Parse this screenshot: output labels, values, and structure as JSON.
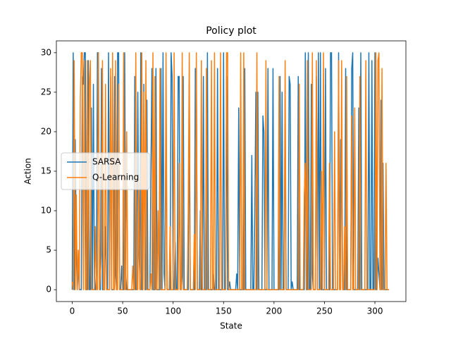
{
  "chart_data": {
    "type": "line",
    "title": "Policy plot",
    "xlabel": "State",
    "ylabel": "Action",
    "xlim": [
      -15.7,
      330.7
    ],
    "ylim": [
      -1.5,
      31.5
    ],
    "xticks": [
      0,
      50,
      100,
      150,
      200,
      250,
      300
    ],
    "yticks": [
      0,
      5,
      10,
      15,
      20,
      25,
      30
    ],
    "legend": "center left",
    "x": [
      0,
      1,
      2,
      3,
      4,
      5,
      6,
      7,
      8,
      9,
      10,
      11,
      12,
      13,
      14,
      15,
      16,
      17,
      18,
      19,
      20,
      21,
      22,
      23,
      24,
      25,
      26,
      27,
      28,
      29,
      30,
      31,
      32,
      33,
      34,
      35,
      36,
      37,
      38,
      39,
      40,
      41,
      42,
      43,
      44,
      45,
      46,
      47,
      48,
      49,
      50,
      51,
      52,
      53,
      54,
      55,
      56,
      57,
      58,
      59,
      60,
      61,
      62,
      63,
      64,
      65,
      66,
      67,
      68,
      69,
      70,
      71,
      72,
      73,
      74,
      75,
      76,
      77,
      78,
      79,
      80,
      81,
      82,
      83,
      84,
      85,
      86,
      87,
      88,
      89,
      90,
      91,
      92,
      93,
      94,
      95,
      96,
      97,
      98,
      99,
      100,
      101,
      102,
      103,
      104,
      105,
      106,
      107,
      108,
      109,
      110,
      111,
      112,
      113,
      114,
      115,
      116,
      117,
      118,
      119,
      120,
      121,
      122,
      123,
      124,
      125,
      126,
      127,
      128,
      129,
      130,
      131,
      132,
      133,
      134,
      135,
      136,
      137,
      138,
      139,
      140,
      141,
      142,
      143,
      144,
      145,
      146,
      147,
      148,
      149,
      150,
      151,
      152,
      153,
      154,
      155,
      156,
      157,
      158,
      159,
      160,
      161,
      162,
      163,
      164,
      165,
      166,
      167,
      168,
      169,
      170,
      171,
      172,
      173,
      174,
      175,
      176,
      177,
      178,
      179,
      180,
      181,
      182,
      183,
      184,
      185,
      186,
      187,
      188,
      189,
      190,
      191,
      192,
      193,
      194,
      195,
      196,
      197,
      198,
      199,
      200,
      201,
      202,
      203,
      204,
      205,
      206,
      207,
      208,
      209,
      210,
      211,
      212,
      213,
      214,
      215,
      216,
      217,
      218,
      219,
      220,
      221,
      222,
      223,
      224,
      225,
      226,
      227,
      228,
      229,
      230,
      231,
      232,
      233,
      234,
      235,
      236,
      237,
      238,
      239,
      240,
      241,
      242,
      243,
      244,
      245,
      246,
      247,
      248,
      249,
      250,
      251,
      252,
      253,
      254,
      255,
      256,
      257,
      258,
      259,
      260,
      261,
      262,
      263,
      264,
      265,
      266,
      267,
      268,
      269,
      270,
      271,
      272,
      273,
      274,
      275,
      276,
      277,
      278,
      279,
      280,
      281,
      282,
      283,
      284,
      285,
      286,
      287,
      288,
      289,
      290,
      291,
      292,
      293,
      294,
      295,
      296,
      297,
      298,
      299,
      300,
      301,
      302,
      303,
      304,
      305,
      306,
      307,
      308,
      309,
      310,
      311,
      312,
      313,
      314
    ],
    "series": [
      {
        "name": "SARSA",
        "color": "#1f77b4",
        "values": [
          0,
          30,
          0,
          19,
          5,
          0,
          3,
          0,
          0,
          0,
          27,
          26,
          30,
          30,
          0,
          0,
          29,
          0,
          0,
          23,
          0,
          26,
          0,
          0,
          2,
          30,
          30,
          0,
          0,
          28,
          0,
          0,
          0,
          8,
          2,
          0,
          30,
          0,
          27,
          0,
          0,
          0,
          27,
          2,
          0,
          30,
          30,
          0,
          0,
          3,
          0,
          0,
          30,
          2,
          0,
          0,
          0,
          0,
          0,
          0,
          0,
          0,
          27,
          0,
          0,
          25,
          5,
          2,
          30,
          0,
          0,
          26,
          0,
          0,
          24,
          0,
          0,
          0,
          15,
          28,
          0,
          0,
          0,
          28,
          0,
          0,
          0,
          0,
          28,
          0,
          30,
          2,
          0,
          23,
          0,
          0,
          0,
          0,
          30,
          27,
          0,
          0,
          6,
          0,
          0,
          27,
          27,
          0,
          0,
          2,
          27,
          0,
          0,
          0,
          0,
          0,
          26,
          0,
          0,
          0,
          0,
          0,
          28,
          28,
          0,
          0,
          0,
          10,
          0,
          0,
          27,
          0,
          0,
          0,
          30,
          0,
          0,
          0,
          0,
          0,
          2,
          0,
          0,
          0,
          28,
          0,
          0,
          0,
          0,
          0,
          30,
          0,
          0,
          27,
          0,
          0,
          1,
          0,
          0,
          0,
          0,
          0,
          0,
          2,
          0,
          23,
          0,
          0,
          0,
          0,
          0,
          28,
          0,
          0,
          0,
          0,
          0,
          0,
          17,
          0,
          0,
          10,
          25,
          0,
          25,
          0,
          0,
          0,
          0,
          22,
          20,
          0,
          0,
          0,
          28,
          0,
          0,
          0,
          0,
          28,
          0,
          0,
          0,
          0,
          0,
          0,
          27,
          0,
          25,
          0,
          0,
          24,
          0,
          0,
          0,
          27,
          26,
          0,
          1,
          0,
          0,
          0,
          0,
          0,
          27,
          0,
          0,
          0,
          0,
          0,
          0,
          30,
          0,
          0,
          30,
          0,
          0,
          26,
          2,
          0,
          0,
          0,
          27,
          0,
          30,
          0,
          30,
          0,
          0,
          0,
          0,
          28,
          0,
          0,
          0,
          0,
          30,
          30,
          0,
          0,
          0,
          0,
          0,
          0,
          30,
          0,
          19,
          17,
          0,
          0,
          0,
          28,
          0,
          0,
          0,
          0,
          0,
          28,
          30,
          0,
          0,
          0,
          0,
          0,
          23,
          0,
          30,
          0,
          0,
          0,
          0,
          0,
          0,
          0,
          30,
          0,
          0,
          29,
          0,
          0,
          30,
          0,
          0,
          4,
          2,
          0,
          24,
          0,
          16,
          0,
          0,
          0,
          0,
          0,
          0
        ]
      },
      {
        "name": "Q-Learning",
        "color": "#ff7f0e",
        "values": [
          1,
          0,
          29,
          0,
          12,
          0,
          5,
          0,
          24,
          30,
          30,
          0,
          29,
          0,
          0,
          29,
          0,
          26,
          29,
          0,
          0,
          0,
          0,
          8,
          0,
          0,
          30,
          0,
          2,
          5,
          29,
          0,
          0,
          26,
          0,
          0,
          0,
          0,
          28,
          0,
          30,
          0,
          0,
          29,
          0,
          0,
          26,
          0,
          0,
          0,
          0,
          30,
          0,
          0,
          20,
          0,
          0,
          0,
          0,
          0,
          3,
          0,
          0,
          30,
          0,
          0,
          14,
          0,
          0,
          30,
          0,
          25,
          0,
          29,
          0,
          0,
          0,
          0,
          2,
          0,
          30,
          0,
          27,
          0,
          0,
          10,
          0,
          28,
          0,
          0,
          0,
          0,
          0,
          30,
          0,
          0,
          0,
          8,
          0,
          0,
          0,
          30,
          0,
          0,
          0,
          0,
          16,
          0,
          0,
          30,
          0,
          0,
          0,
          0,
          0,
          10,
          30,
          0,
          0,
          0,
          0,
          7,
          0,
          30,
          0,
          0,
          0,
          0,
          29,
          0,
          0,
          0,
          0,
          28,
          0,
          0,
          0,
          0,
          29,
          0,
          0,
          30,
          0,
          0,
          0,
          0,
          0,
          30,
          0,
          0,
          0,
          0,
          0,
          30,
          30,
          0,
          0,
          0,
          0,
          0,
          0,
          0,
          0,
          0,
          0,
          0,
          0,
          30,
          0,
          0,
          30,
          0,
          0,
          0,
          0,
          0,
          0,
          0,
          0,
          0,
          0,
          0,
          0,
          30,
          0,
          0,
          0,
          0,
          0,
          0,
          0,
          0,
          29,
          0,
          0,
          0,
          0,
          0,
          0,
          0,
          0,
          0,
          0,
          0,
          0,
          27,
          0,
          0,
          0,
          0,
          0,
          29,
          0,
          0,
          0,
          0,
          0,
          0,
          0,
          0,
          0,
          0,
          0,
          0,
          0,
          26,
          0,
          0,
          0,
          0,
          12,
          16,
          0,
          29,
          0,
          0,
          0,
          0,
          30,
          0,
          0,
          0,
          29,
          0,
          0,
          0,
          0,
          15,
          0,
          30,
          0,
          0,
          0,
          0,
          0,
          16,
          0,
          0,
          0,
          0,
          20,
          0,
          0,
          0,
          29,
          0,
          0,
          29,
          0,
          0,
          8,
          0,
          27,
          0,
          0,
          0,
          0,
          22,
          0,
          0,
          23,
          0,
          0,
          0,
          0,
          27,
          0,
          0,
          0,
          0,
          0,
          29,
          0,
          0,
          0,
          0,
          0,
          0,
          0,
          0,
          0,
          30,
          0,
          29,
          30,
          0,
          0,
          28,
          0,
          0,
          0,
          16,
          0,
          0,
          0
        ]
      }
    ]
  }
}
